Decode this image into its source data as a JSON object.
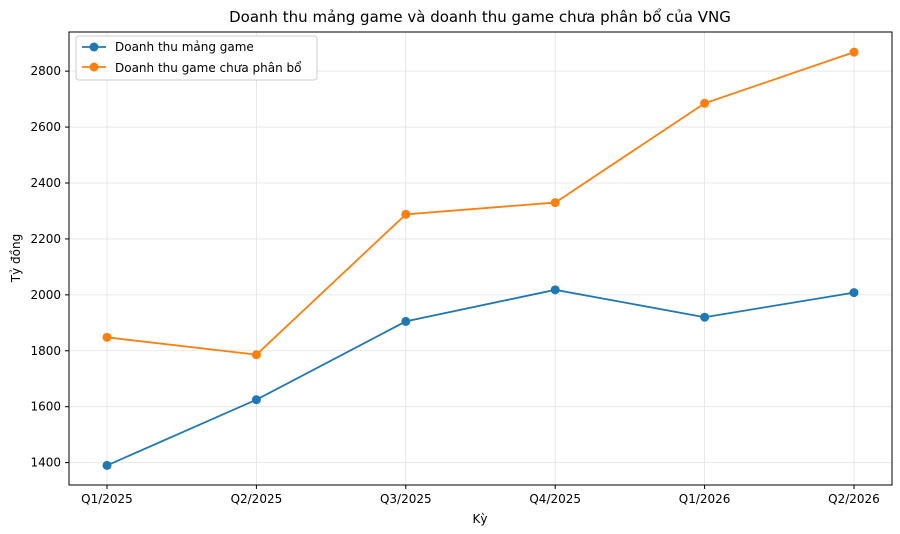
{
  "chart_data": {
    "type": "line",
    "title": "Doanh thu mảng game và doanh thu game chưa phân bổ của VNG",
    "xlabel": "Kỳ",
    "ylabel": "Tỷ đồng",
    "categories": [
      "Q1/2025",
      "Q2/2025",
      "Q3/2025",
      "Q4/2025",
      "Q1/2026",
      "Q2/2026"
    ],
    "series": [
      {
        "name": "Doanh thu mảng game",
        "color": "#1f77b4",
        "values": [
          1390,
          1625,
          1905,
          2018,
          1920,
          2008
        ]
      },
      {
        "name": "Doanh thu game chưa phân bổ",
        "color": "#ff7f0e",
        "values": [
          1848,
          1786,
          2288,
          2330,
          2685,
          2868
        ]
      }
    ],
    "yticks": [
      "1400",
      "1600",
      "1800",
      "2000",
      "2200",
      "2400",
      "2600",
      "2800"
    ],
    "ylim": [
      1320,
      2940
    ],
    "grid": true,
    "legend_position": "top-left"
  }
}
